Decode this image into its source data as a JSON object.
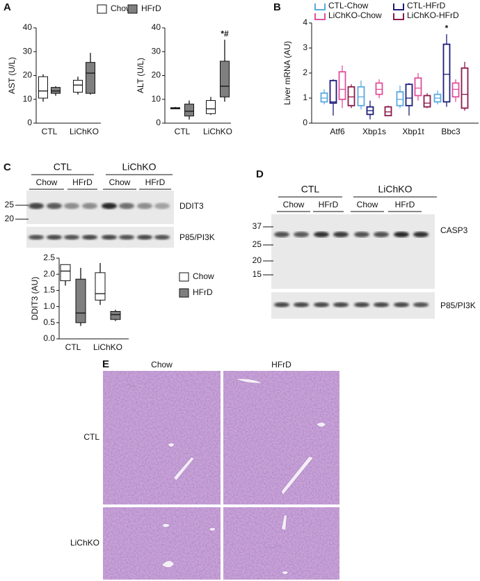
{
  "panel_labels": [
    "A",
    "B",
    "C",
    "D",
    "E"
  ],
  "chart_data": [
    {
      "type": "box",
      "ylabel": "AST (U/L)",
      "categories": [
        "CTL",
        "LiChKO"
      ],
      "ylim": [
        0,
        40
      ],
      "yticks": [
        0,
        10,
        20,
        30,
        40
      ],
      "series": [
        {
          "name": "Chow",
          "color": "#ffffff",
          "values": [
            {
              "min": 9,
              "q1": 10.5,
              "median": 13.5,
              "q3": 19.5,
              "max": 20.5
            },
            {
              "min": 12,
              "q1": 13,
              "median": 16,
              "q3": 18,
              "max": 19.5
            }
          ]
        },
        {
          "name": "HFrD",
          "color": "#7f7f7f",
          "values": [
            {
              "min": 11.5,
              "q1": 12.5,
              "median": 13.5,
              "q3": 15,
              "max": 15.5
            },
            {
              "min": 12,
              "q1": 12.5,
              "median": 21,
              "q3": 25.5,
              "max": 29.5
            }
          ]
        }
      ]
    },
    {
      "type": "box",
      "ylabel": "ALT (U/L)",
      "categories": [
        "CTL",
        "LiChKO"
      ],
      "ylim": [
        0,
        40
      ],
      "yticks": [
        0,
        10,
        20,
        30,
        40
      ],
      "annotation": "*#",
      "series": [
        {
          "color": "#ffffff",
          "values": [
            {
              "min": 6,
              "q1": 6,
              "median": 6.2,
              "q3": 6.5,
              "max": 6.8
            },
            {
              "min": 3.5,
              "q1": 4,
              "median": 6,
              "q3": 9.5,
              "max": 11
            }
          ]
        },
        {
          "color": "#7f7f7f",
          "values": [
            {
              "min": 1.5,
              "q1": 3,
              "median": 5,
              "q3": 8,
              "max": 9.5
            },
            {
              "min": 9,
              "q1": 11,
              "median": 15.5,
              "q3": 26,
              "max": 35
            }
          ]
        }
      ]
    },
    {
      "type": "box",
      "ylabel": "Liver mRNA (AU)",
      "categories": [
        "Atf6",
        "Xbp1s",
        "Xbp1t",
        "Bbc3"
      ],
      "ylim": [
        0,
        4
      ],
      "yticks": [
        0,
        1,
        2,
        3,
        4
      ],
      "annotation": "*",
      "series": [
        {
          "name": "CTL-Chow",
          "color": "#5aa9e0",
          "values": [
            {
              "min": 0.75,
              "q1": 0.85,
              "median": 1.0,
              "q3": 1.2,
              "max": 1.35
            },
            {
              "min": 0.55,
              "q1": 0.7,
              "median": 1.05,
              "q3": 1.45,
              "max": 1.7
            },
            {
              "min": 0.6,
              "q1": 0.7,
              "median": 0.95,
              "q3": 1.25,
              "max": 1.5
            },
            {
              "min": 0.75,
              "q1": 0.85,
              "median": 1.0,
              "q3": 1.15,
              "max": 1.3
            }
          ]
        },
        {
          "name": "CTL-HFrD",
          "color": "#1c1c7a",
          "values": [
            {
              "min": 0.3,
              "q1": 0.8,
              "median": 0.85,
              "q3": 1.7,
              "max": 1.75
            },
            {
              "min": 0.15,
              "q1": 0.35,
              "median": 0.5,
              "q3": 0.65,
              "max": 0.9
            },
            {
              "min": 0.3,
              "q1": 0.7,
              "median": 1.0,
              "q3": 1.55,
              "max": 1.6
            },
            {
              "min": 0.65,
              "q1": 0.85,
              "median": 1.95,
              "q3": 3.15,
              "max": 3.55
            }
          ]
        },
        {
          "name": "LiChKO-Chow",
          "color": "#e0509a",
          "values": [
            {
              "min": 0.6,
              "q1": 0.95,
              "median": 1.35,
              "q3": 2.05,
              "max": 2.3
            },
            {
              "min": 1.0,
              "q1": 1.15,
              "median": 1.35,
              "q3": 1.6,
              "max": 1.75
            },
            {
              "min": 0.9,
              "q1": 1.1,
              "median": 1.4,
              "q3": 1.8,
              "max": 2.0
            },
            {
              "min": 0.85,
              "q1": 1.05,
              "median": 1.35,
              "q3": 1.6,
              "max": 1.75
            }
          ]
        },
        {
          "name": "LiChKO-HFrD",
          "color": "#8b1a4a",
          "values": [
            {
              "min": 0.6,
              "q1": 0.7,
              "median": 1.05,
              "q3": 1.45,
              "max": 1.55
            },
            {
              "min": 0.3,
              "q1": 0.3,
              "median": 0.45,
              "q3": 0.65,
              "max": 0.7
            },
            {
              "min": 0.6,
              "q1": 0.65,
              "median": 0.8,
              "q3": 1.1,
              "max": 1.2
            },
            {
              "min": 0.5,
              "q1": 0.6,
              "median": 1.15,
              "q3": 2.2,
              "max": 2.45
            }
          ]
        }
      ]
    },
    {
      "type": "box",
      "ylabel": "DDIT3  (AU)",
      "categories": [
        "CTL",
        "LiChKO"
      ],
      "ylim": [
        0,
        2.5
      ],
      "yticks": [
        {
          "value": 0,
          "label": "0.0"
        },
        {
          "value": 0.5,
          "label": "0.5"
        },
        {
          "value": 1,
          "label": "1.0"
        },
        {
          "value": 1.5,
          "label": "1.5"
        },
        {
          "value": 2,
          "label": "2.0"
        },
        {
          "value": 2.5,
          "label": "2.5"
        }
      ],
      "series": [
        {
          "name": "Chow",
          "color": "#ffffff",
          "values": [
            {
              "min": 1.65,
              "q1": 1.8,
              "median": 2.1,
              "q3": 2.3,
              "max": 2.3
            },
            {
              "min": 1.05,
              "q1": 1.2,
              "median": 1.4,
              "q3": 2.05,
              "max": 2.35
            }
          ]
        },
        {
          "name": "HFrD",
          "color": "#7f7f7f",
          "values": [
            {
              "min": 0.4,
              "q1": 0.5,
              "median": 0.8,
              "q3": 1.85,
              "max": 2.2
            },
            {
              "min": 0.55,
              "q1": 0.6,
              "median": 0.75,
              "q3": 0.85,
              "max": 0.9
            }
          ]
        }
      ]
    }
  ],
  "blot_c": {
    "groups": [
      "CTL",
      "LiChKO"
    ],
    "lanes": [
      "Chow",
      "HFrD",
      "Chow",
      "HFrD"
    ],
    "markers": [
      25,
      20
    ],
    "bands": [
      "DDIT3",
      "P85/PI3K"
    ]
  },
  "blot_d": {
    "groups": [
      "CTL",
      "LiChKO"
    ],
    "lanes": [
      "Chow",
      "HFrD",
      "Chow",
      "HFrD"
    ],
    "markers": [
      37,
      25,
      20,
      15
    ],
    "bands": [
      "CASP3",
      "P85/PI3K"
    ]
  },
  "histology": {
    "columns": [
      "Chow",
      "HFrD"
    ],
    "rows": [
      "CTL",
      "LiChKO"
    ]
  }
}
